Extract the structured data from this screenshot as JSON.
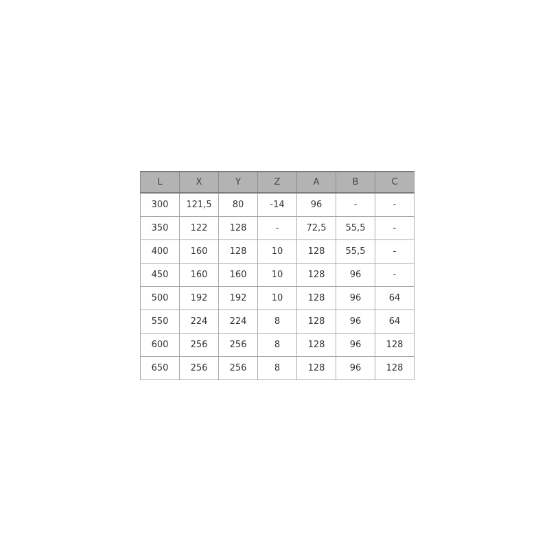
{
  "table": {
    "headers": [
      "L",
      "X",
      "Y",
      "Z",
      "A",
      "B",
      "C"
    ],
    "rows": [
      [
        "300",
        "121,5",
        "80",
        "-14",
        "96",
        "-",
        "-"
      ],
      [
        "350",
        "122",
        "128",
        "-",
        "72,5",
        "55,5",
        "-"
      ],
      [
        "400",
        "160",
        "128",
        "10",
        "128",
        "55,5",
        "-"
      ],
      [
        "450",
        "160",
        "160",
        "10",
        "128",
        "96",
        "-"
      ],
      [
        "500",
        "192",
        "192",
        "10",
        "128",
        "96",
        "64"
      ],
      [
        "550",
        "224",
        "224",
        "8",
        "128",
        "96",
        "64"
      ],
      [
        "600",
        "256",
        "256",
        "8",
        "128",
        "96",
        "128"
      ],
      [
        "650",
        "256",
        "256",
        "8",
        "128",
        "96",
        "128"
      ]
    ]
  }
}
